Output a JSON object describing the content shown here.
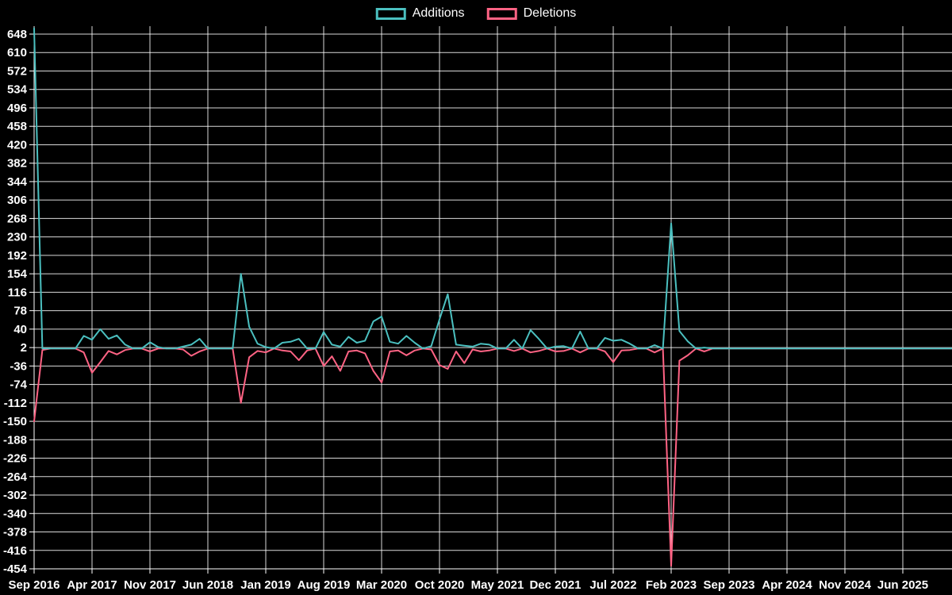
{
  "legend": {
    "additions_label": "Additions",
    "deletions_label": "Deletions"
  },
  "chart_data": {
    "type": "line",
    "title": "",
    "xlabel": "",
    "ylabel": "",
    "background_color": "#000000",
    "grid": true,
    "grid_color": "rgba(255,255,255,0.85)",
    "axis_color": "#ffffff",
    "legend_position": "top-center",
    "ylim": [
      -454,
      648
    ],
    "y_ticks": [
      648,
      610,
      572,
      534,
      496,
      458,
      420,
      382,
      344,
      306,
      268,
      230,
      192,
      154,
      116,
      78,
      40,
      2,
      -36,
      -74,
      -112,
      -150,
      -188,
      -226,
      -264,
      -302,
      -340,
      -378,
      -416,
      -454
    ],
    "x_tick_labels": [
      "Sep 2016",
      "Apr 2017",
      "Nov 2017",
      "Jun 2018",
      "Jan 2019",
      "Aug 2019",
      "Mar 2020",
      "Oct 2020",
      "May 2021",
      "Dec 2021",
      "Jul 2022",
      "Feb 2023",
      "Sep 2023",
      "Apr 2024",
      "Nov 2024",
      "Jun 2025"
    ],
    "months_per_tick": 7,
    "x_start": "Sep 2016",
    "x_end": "Dec 2025",
    "months_total": 112,
    "series": [
      {
        "name": "Additions",
        "color": "#4bc0c0",
        "values": [
          660,
          0,
          0,
          0,
          0,
          0,
          26,
          18,
          40,
          20,
          27,
          8,
          0,
          0,
          13,
          3,
          0,
          0,
          4,
          8,
          20,
          0,
          0,
          0,
          0,
          154,
          45,
          10,
          3,
          0,
          12,
          14,
          20,
          0,
          0,
          34,
          8,
          4,
          24,
          12,
          16,
          56,
          66,
          14,
          10,
          26,
          12,
          0,
          5,
          60,
          112,
          8,
          6,
          4,
          10,
          8,
          0,
          0,
          18,
          0,
          38,
          20,
          0,
          4,
          5,
          0,
          35,
          0,
          0,
          22,
          16,
          18,
          10,
          0,
          0,
          7,
          0,
          258,
          36,
          15,
          0,
          2,
          0,
          0,
          0,
          0,
          0,
          0,
          0,
          0,
          0,
          0,
          0,
          0,
          0,
          0,
          0,
          0,
          0,
          0,
          0,
          0,
          0,
          0,
          0,
          0,
          0,
          0,
          0,
          0,
          0,
          0
        ]
      },
      {
        "name": "Deletions",
        "color": "#ff6384",
        "values": [
          -150,
          -3,
          0,
          0,
          0,
          0,
          -8,
          -50,
          -28,
          -5,
          -12,
          -3,
          0,
          0,
          -6,
          0,
          0,
          0,
          -2,
          -15,
          -6,
          0,
          0,
          0,
          0,
          -112,
          -18,
          -5,
          -8,
          0,
          -4,
          -6,
          -24,
          -4,
          0,
          -36,
          -16,
          -46,
          -6,
          -4,
          -10,
          -46,
          -70,
          -6,
          -4,
          -14,
          -4,
          0,
          -2,
          -34,
          -42,
          -6,
          -30,
          -2,
          -6,
          -4,
          0,
          0,
          -5,
          0,
          -8,
          -5,
          0,
          -6,
          -5,
          0,
          -8,
          0,
          0,
          -6,
          -28,
          -4,
          -3,
          0,
          0,
          -8,
          0,
          -448,
          -25,
          -14,
          0,
          -6,
          0,
          0,
          0,
          0,
          0,
          0,
          0,
          0,
          0,
          0,
          0,
          0,
          0,
          0,
          0,
          0,
          0,
          0,
          0,
          0,
          0,
          0,
          0,
          0,
          0,
          0,
          0,
          0,
          0,
          0
        ]
      }
    ]
  }
}
